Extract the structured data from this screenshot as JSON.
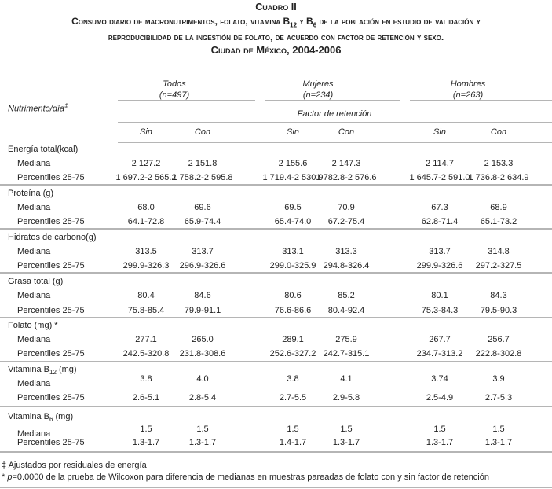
{
  "title": {
    "label": "Cuadro II",
    "line1": "Consumo diario de macronutrimentos, folato, vitamina B12 y B6 de la población en estudio de validación y",
    "line2": "reproducibilidad de la ingestión de folato, de acuerdo con factor de retención y sexo.",
    "line3": "Ciudad de México, 2004-2006"
  },
  "header": {
    "row_label": "Nutrimento/día",
    "row_label_mark": "‡",
    "groups": [
      {
        "name": "Todos",
        "n": "(n=497)"
      },
      {
        "name": "Mujeres",
        "n": "(n=234)"
      },
      {
        "name": "Hombres",
        "n": "(n=263)"
      }
    ],
    "factor": "Factor de retención",
    "subcols": [
      "Sin",
      "Con",
      "Sin",
      "Con",
      "Sin",
      "Con"
    ]
  },
  "rows": [
    {
      "name": "Energía total(kcal)",
      "sub": "",
      "suffix": "",
      "mediana_label": "Mediana",
      "pct_label": "Percentiles 25-75",
      "mediana": [
        "2 127.2",
        "2 151.8",
        "2 155.6",
        "2 147.3",
        "2 114.7",
        "2 153.3"
      ],
      "pct": [
        "1 697.2-2 565.2",
        "1 758.2-2 595.8",
        "1 719.4-2 530.9",
        "1 782.8-2 576.6",
        "1 645.7-2 591.0",
        "1 736.8-2 634.9"
      ]
    },
    {
      "name": "Proteína (g)",
      "sub": "",
      "suffix": "",
      "mediana_label": "Mediana",
      "pct_label": "Percentiles 25-75",
      "mediana": [
        "68.0",
        "69.6",
        "69.5",
        "70.9",
        "67.3",
        "68.9"
      ],
      "pct": [
        "64.1-72.8",
        "65.9-74.4",
        "65.4-74.0",
        "67.2-75.4",
        "62.8-71.4",
        "65.1-73.2"
      ]
    },
    {
      "name": "Hidratos de carbono(g)",
      "sub": "",
      "suffix": "",
      "mediana_label": "Mediana",
      "pct_label": "Percentiles 25-75",
      "mediana": [
        "313.5",
        "313.7",
        "313.1",
        "313.3",
        "313.7",
        "314.8"
      ],
      "pct": [
        "299.9-326.3",
        "296.9-326.6",
        "299.0-325.9",
        "294.8-326.4",
        "299.9-326.6",
        "297.2-327.5"
      ]
    },
    {
      "name": "Grasa total (g)",
      "sub": "",
      "suffix": "",
      "mediana_label": "Mediana",
      "pct_label": "Percentiles 25-75",
      "mediana": [
        "80.4",
        "84.6",
        "80.6",
        "85.2",
        "80.1",
        "84.3"
      ],
      "pct": [
        "75.8-85.4",
        "79.9-91.1",
        "76.6-86.6",
        "80.4-92.4",
        "75.3-84.3",
        "79.5-90.3"
      ]
    },
    {
      "name": "Folato (mg) *",
      "sub": "",
      "suffix": "",
      "mediana_label": "Mediana",
      "pct_label": "Percentiles 25-75",
      "mediana": [
        "277.1",
        "265.0",
        "289.1",
        "275.9",
        "267.7",
        "256.7"
      ],
      "pct": [
        "242.5-320.8",
        "231.8-308.6",
        "252.6-327.2",
        "242.7-315.1",
        "234.7-313.2",
        "222.8-302.8"
      ]
    },
    {
      "name": "Vitamina B",
      "sub": "12",
      "suffix": " (mg)",
      "mediana_label": "Mediana",
      "pct_label": "Percentiles 25-75",
      "mediana": [
        "3.8",
        "4.0",
        "3.8",
        "4.1",
        "3.74",
        "3.9"
      ],
      "pct": [
        "2.6-5.1",
        "2.8-5.4",
        "2.7-5.5",
        "2.9-5.8",
        "2.5-4.9",
        "2.7-5.3"
      ]
    },
    {
      "name": "Vitamina B",
      "sub": "6",
      "suffix": " (mg)",
      "mediana_label": "Mediana",
      "pct_label": "Percentiles 25-75",
      "mediana": [
        "1.5",
        "1.5",
        "1.5",
        "1.5",
        "1.5",
        "1.5"
      ],
      "pct": [
        "1.3-1.7",
        "1.3-1.7",
        "1.4-1.7",
        "1.3-1.7",
        "1.3-1.7",
        "1.3-1.7"
      ]
    }
  ],
  "footnotes": [
    {
      "mark": "‡",
      "text": " Ajustados por residuales de energía"
    },
    {
      "mark": "*",
      "p": " p",
      "text": "=0.0000 de la prueba de Wilcoxon para diferencia de medianas en muestras pareadas de folato con y sin factor de retención"
    }
  ]
}
